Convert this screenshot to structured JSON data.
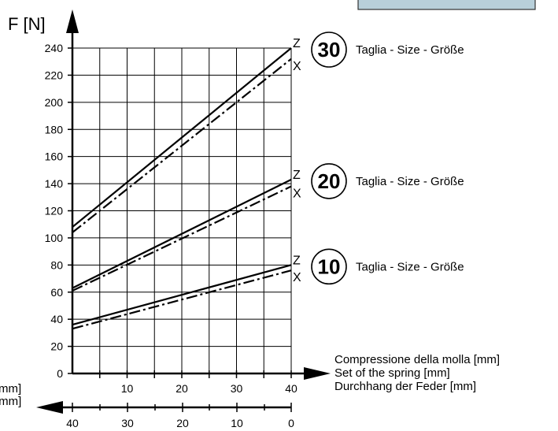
{
  "chart_data": {
    "type": "line",
    "title": "",
    "ylabel": "F [N]",
    "xlabel_lines": [
      "Compressione della molla [mm]",
      "Set of the spring [mm]",
      "Durchhang der Feder [mm]"
    ],
    "xlabel_secondary_lines": [
      "mm]",
      "[mm]"
    ],
    "xlim": [
      0,
      40
    ],
    "ylim": [
      0,
      240
    ],
    "y_ticks": [
      0,
      20,
      40,
      60,
      80,
      100,
      120,
      140,
      160,
      180,
      200,
      220,
      240
    ],
    "x_ticks": [
      10,
      20,
      30,
      40
    ],
    "x_secondary_ticks": [
      40,
      30,
      20,
      10,
      0
    ],
    "grid": true,
    "series": [
      {
        "size": "30",
        "tag": "Z",
        "style": "solid",
        "x": [
          0,
          40
        ],
        "y": [
          108,
          240
        ]
      },
      {
        "size": "30",
        "tag": "X",
        "style": "dashdot",
        "x": [
          0,
          40
        ],
        "y": [
          104,
          232
        ]
      },
      {
        "size": "20",
        "tag": "Z",
        "style": "solid",
        "x": [
          0,
          40
        ],
        "y": [
          63,
          143
        ]
      },
      {
        "size": "20",
        "tag": "X",
        "style": "dashdot",
        "x": [
          0,
          40
        ],
        "y": [
          61,
          138
        ]
      },
      {
        "size": "10",
        "tag": "Z",
        "style": "solid",
        "x": [
          0,
          40
        ],
        "y": [
          36,
          80
        ]
      },
      {
        "size": "10",
        "tag": "X",
        "style": "dashdot",
        "x": [
          0,
          40
        ],
        "y": [
          33,
          76
        ]
      }
    ],
    "size_labels": [
      {
        "number": "30",
        "text": "Taglia - Size - Größe"
      },
      {
        "number": "20",
        "text": "Taglia - Size - Größe"
      },
      {
        "number": "10",
        "text": "Taglia - Size - Größe"
      }
    ]
  }
}
